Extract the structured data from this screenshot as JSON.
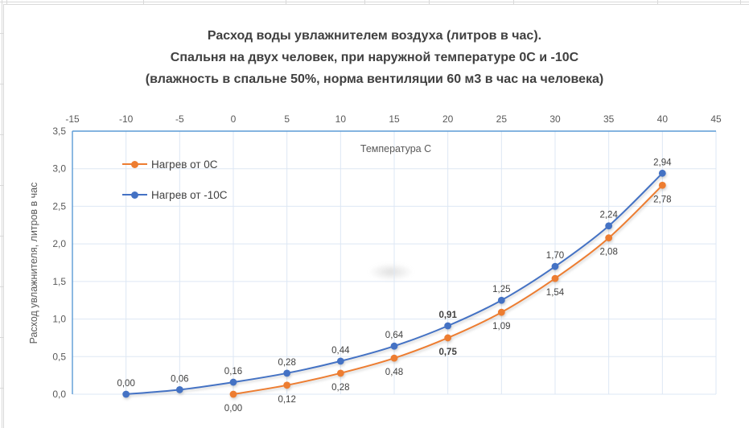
{
  "chart": {
    "title_lines": [
      "Расход воды увлажнителем воздуха (литров в час).",
      "Спальня на двух человек, при наружной температуре 0С и -10С",
      "(влажность в спальне 50%, норма вентиляции 60 м3 в час на человека)"
    ],
    "x_tick_labels": [
      "-15",
      "-10",
      "-5",
      "0",
      "5",
      "10",
      "15",
      "20",
      "25",
      "30",
      "35",
      "40",
      "45"
    ],
    "y_tick_labels": [
      "0,0",
      "0,5",
      "1,0",
      "1,5",
      "2,0",
      "2,5",
      "3,0",
      "3,5"
    ]
  },
  "chart_data": {
    "type": "line",
    "title": "Расход воды увлажнителем воздуха (литров в час). Спальня на двух человек, при наружной температуре 0С и -10С (влажность в спальне 50%, норма вентиляции 60 м3 в час на человека)",
    "xlabel": "Температура С",
    "ylabel": "Расход увлажнителя, литров в час",
    "xlim": [
      -15,
      45
    ],
    "ylim": [
      0,
      3.5
    ],
    "x_ticks": [
      -15,
      -10,
      -5,
      0,
      5,
      10,
      15,
      20,
      25,
      30,
      35,
      40,
      45
    ],
    "y_ticks": [
      0,
      0.5,
      1,
      1.5,
      2,
      2.5,
      3,
      3.5
    ],
    "grid": true,
    "x_axis_position": "top",
    "legend_position": "inside-top-left",
    "series": [
      {
        "name": "Нагрев от 0С",
        "color": "#ED7D31",
        "marker": "circle",
        "label_position": "below",
        "x": [
          0,
          5,
          10,
          15,
          20,
          25,
          30,
          35,
          40
        ],
        "values": [
          0.0,
          0.12,
          0.28,
          0.48,
          0.75,
          1.09,
          1.54,
          2.08,
          2.78
        ],
        "point_labels": [
          "0,00",
          "0,12",
          "0,28",
          "0,48",
          "0,75",
          "1,09",
          "1,54",
          "2,08",
          "2,78"
        ],
        "bold_label_indices": [
          4
        ]
      },
      {
        "name": "Нагрев от -10С",
        "color": "#4472C4",
        "marker": "circle",
        "label_position": "above",
        "x": [
          -10,
          -5,
          0,
          5,
          10,
          15,
          20,
          25,
          30,
          35,
          40
        ],
        "values": [
          0.0,
          0.06,
          0.16,
          0.28,
          0.44,
          0.64,
          0.91,
          1.25,
          1.7,
          2.24,
          2.94
        ],
        "point_labels": [
          "0,00",
          "0,06",
          "0,16",
          "0,28",
          "0,44",
          "0,64",
          "0,91",
          "1,25",
          "1,70",
          "2,24",
          "2,94"
        ],
        "bold_label_indices": [
          6
        ]
      }
    ]
  },
  "colors": {
    "axis_line": "#5B9BD5",
    "gridline": "#DDE7F4",
    "title_text": "#404040",
    "tick_text": "#595959",
    "label_text": "#404040",
    "chart_border": "#D9D9D9",
    "sheet_gridline": "#D9D9D9",
    "series_orange": "#ED7D31",
    "series_blue": "#4472C4"
  }
}
